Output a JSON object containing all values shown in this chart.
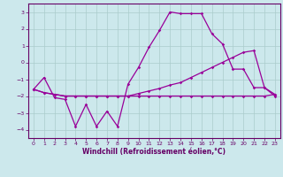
{
  "xlabel": "Windchill (Refroidissement éolien,°C)",
  "bg_color": "#cce8ec",
  "grid_color": "#aacccc",
  "line_color": "#990099",
  "tick_color": "#660066",
  "xlim": [
    -0.5,
    23.5
  ],
  "ylim": [
    -4.5,
    3.5
  ],
  "yticks": [
    3,
    2,
    1,
    0,
    -1,
    -2,
    -3,
    -4
  ],
  "xticks": [
    0,
    1,
    2,
    3,
    4,
    5,
    6,
    7,
    8,
    9,
    10,
    11,
    12,
    13,
    14,
    15,
    16,
    17,
    18,
    19,
    20,
    21,
    22,
    23
  ],
  "line1_x": [
    0,
    1,
    2,
    3,
    4,
    5,
    6,
    7,
    8,
    9,
    10,
    11,
    12,
    13,
    14,
    15,
    16,
    17,
    18,
    19,
    20,
    21,
    22,
    23
  ],
  "line1_y": [
    -1.6,
    -0.9,
    -2.1,
    -2.2,
    -3.8,
    -2.5,
    -3.8,
    -2.9,
    -3.8,
    -1.3,
    -0.3,
    0.9,
    1.9,
    3.0,
    2.9,
    2.9,
    2.9,
    1.7,
    1.1,
    -0.4,
    -0.4,
    -1.5,
    -1.5,
    -2.0
  ],
  "line2_x": [
    0,
    1,
    2,
    3,
    4,
    5,
    6,
    7,
    8,
    9,
    10,
    11,
    12,
    13,
    14,
    15,
    16,
    17,
    18,
    19,
    20,
    21,
    22,
    23
  ],
  "line2_y": [
    -1.6,
    -1.8,
    -1.9,
    -2.0,
    -2.0,
    -2.0,
    -2.0,
    -2.0,
    -2.0,
    -2.0,
    -1.85,
    -1.7,
    -1.55,
    -1.35,
    -1.2,
    -0.9,
    -0.6,
    -0.3,
    0.0,
    0.3,
    0.6,
    0.7,
    -1.5,
    -1.9
  ],
  "line3_x": [
    0,
    1,
    2,
    3,
    4,
    5,
    6,
    7,
    8,
    9,
    10,
    11,
    12,
    13,
    14,
    15,
    16,
    17,
    18,
    19,
    20,
    21,
    22,
    23
  ],
  "line3_y": [
    -1.6,
    -1.8,
    -1.9,
    -2.0,
    -2.0,
    -2.0,
    -2.0,
    -2.0,
    -2.0,
    -2.0,
    -2.0,
    -2.0,
    -2.0,
    -2.0,
    -2.0,
    -2.0,
    -2.0,
    -2.0,
    -2.0,
    -2.0,
    -2.0,
    -2.0,
    -2.0,
    -1.9
  ]
}
